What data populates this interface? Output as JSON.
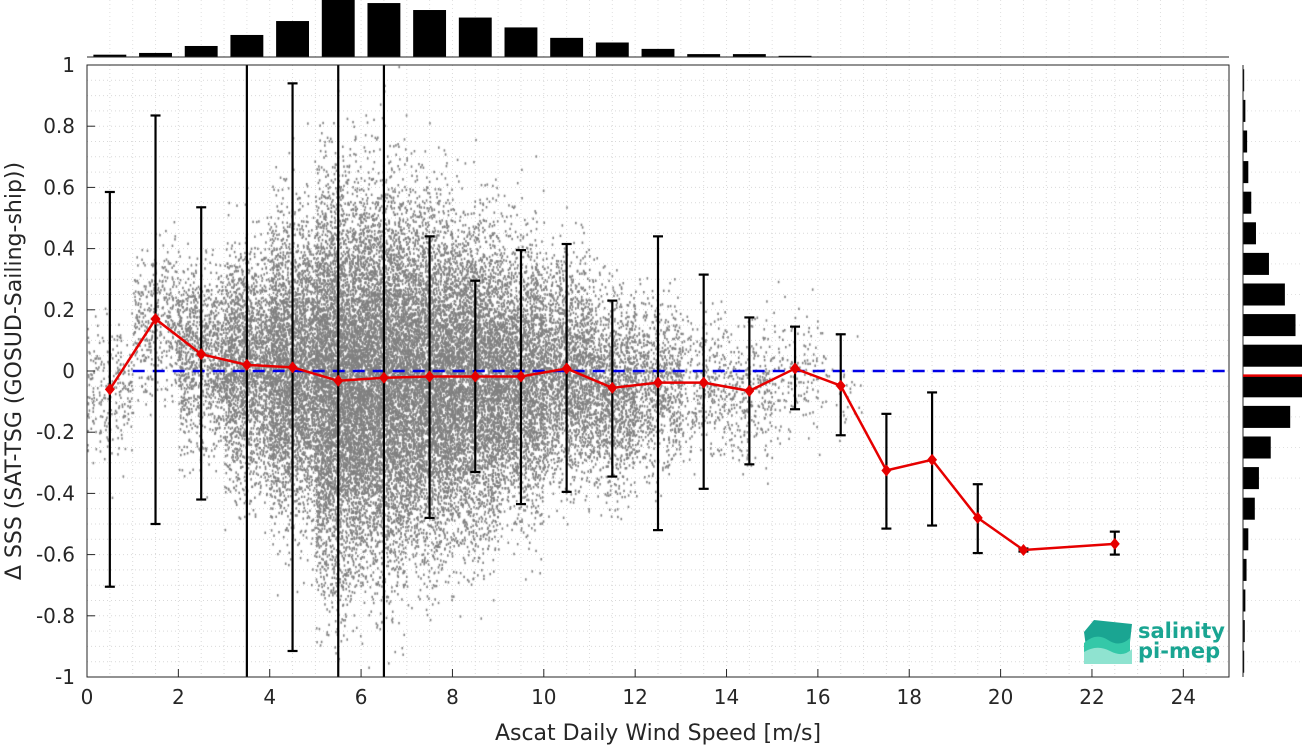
{
  "chart_data": {
    "type": "scatter",
    "xlabel": "Ascat Daily Wind Speed [m/s]",
    "ylabel": "Δ SSS (SAT-TSG (GOSUD-Sailing-ship))",
    "xlim": [
      0,
      25
    ],
    "ylim": [
      -1,
      1
    ],
    "x_ticks": [
      0,
      2,
      4,
      6,
      8,
      10,
      12,
      14,
      16,
      18,
      20,
      22,
      24
    ],
    "y_ticks": [
      -1,
      -0.8,
      -0.6,
      -0.4,
      -0.2,
      0,
      0.2,
      0.4,
      0.6,
      0.8,
      1
    ],
    "grid": "dotted minor and major",
    "scatter_color": "#808080",
    "binned_mean": {
      "color": "#e60000",
      "x": [
        0.5,
        1.5,
        2.5,
        3.5,
        4.5,
        5.5,
        6.5,
        7.5,
        8.5,
        9.5,
        10.5,
        11.5,
        12.5,
        13.5,
        14.5,
        15.5,
        16.5,
        17.5,
        18.5,
        19.5,
        20.5,
        22.5
      ],
      "y": [
        -0.06,
        0.17,
        0.055,
        0.02,
        0.012,
        -0.032,
        -0.022,
        -0.018,
        -0.018,
        -0.018,
        0.008,
        -0.055,
        -0.038,
        -0.038,
        -0.065,
        0.008,
        -0.048,
        -0.325,
        -0.29,
        -0.48,
        -0.585,
        -0.565
      ],
      "err_low": [
        -0.705,
        -0.5,
        -0.42,
        -1.0,
        -0.915,
        -1.0,
        -1.0,
        -0.48,
        -0.33,
        -0.435,
        -0.395,
        -0.345,
        -0.52,
        -0.385,
        -0.305,
        -0.125,
        -0.21,
        -0.515,
        -0.505,
        -0.595,
        -0.59,
        -0.6
      ],
      "err_high": [
        0.585,
        0.835,
        0.535,
        1.0,
        0.94,
        1.0,
        1.0,
        0.44,
        0.295,
        0.395,
        0.415,
        0.23,
        0.44,
        0.315,
        0.175,
        0.145,
        0.12,
        -0.14,
        -0.07,
        -0.37,
        -0.58,
        -0.525
      ]
    },
    "zero_reference": {
      "y": 0,
      "color": "#0000e6",
      "style": "dashed"
    },
    "top_histogram": {
      "bin_centers": [
        0.5,
        1.5,
        2.5,
        3.5,
        4.5,
        5.5,
        6.5,
        7.5,
        8.5,
        9.5,
        10.5,
        11.5,
        12.5,
        13.5,
        14.5,
        15.5,
        16.5
      ],
      "relative_heights": [
        0.04,
        0.07,
        0.19,
        0.38,
        0.62,
        1.0,
        0.93,
        0.81,
        0.68,
        0.51,
        0.33,
        0.25,
        0.14,
        0.05,
        0.05,
        0.02,
        0.0
      ]
    },
    "right_histogram": {
      "bin_centers": [
        -0.95,
        -0.85,
        -0.75,
        -0.65,
        -0.55,
        -0.45,
        -0.35,
        -0.25,
        -0.15,
        -0.05,
        0.05,
        0.15,
        0.25,
        0.35,
        0.45,
        0.55,
        0.65,
        0.75,
        0.85,
        0.95
      ],
      "relative_widths": [
        0.02,
        0.03,
        0.04,
        0.06,
        0.09,
        0.2,
        0.27,
        0.47,
        0.8,
        1.0,
        1.0,
        0.89,
        0.71,
        0.44,
        0.22,
        0.14,
        0.09,
        0.07,
        0.04,
        0.02
      ],
      "median_line": {
        "y": -0.015,
        "color": "#e60000"
      }
    }
  },
  "logo": {
    "line1": "salinity",
    "line2": "pi-mep"
  }
}
